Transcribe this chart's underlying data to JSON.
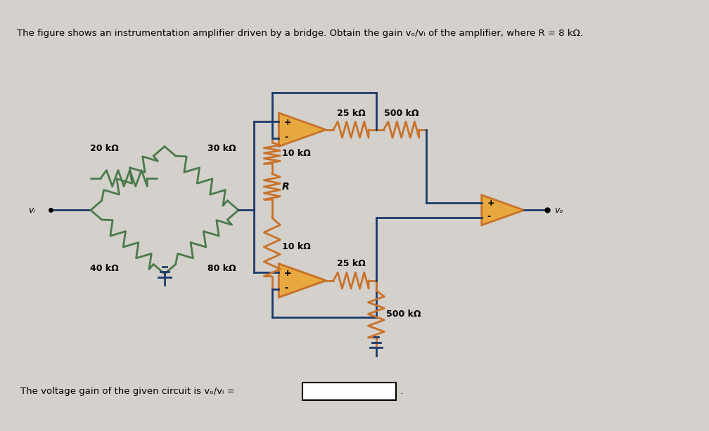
{
  "bg_color": "#d4d0cb",
  "title_text": "The figure shows an instrumentation amplifier driven by a bridge. Obtain the gain vₒ/vᵢ of the amplifier, where R = 8 kΩ.",
  "bottom_text": "The voltage gain of the given circuit is vₒ/vᵢ =",
  "wire_color": "#1a3a6b",
  "resistor_color_bridge": "#4a7a4a",
  "resistor_color_circuit": "#c8722a",
  "op_amp_color": "#c8722a",
  "op_amp_fill": "#e8a840",
  "ground_color": "#1a3a6b",
  "labels": {
    "r_top_left": "20 kΩ",
    "r_top_right": "30 kΩ",
    "r_bot_left": "40 kΩ",
    "r_bot_right": "80 kΩ",
    "r_mid_top": "10 kΩ",
    "r_mid_bot": "10 kΩ",
    "r_gain": "R",
    "r_25k_top": "25 kΩ",
    "r_500k_top": "500 kΩ",
    "r_25k_bot": "25 kΩ",
    "r_500k_bot": "500 kΩ",
    "vi": "vᵢ",
    "vo": "vₒ"
  }
}
